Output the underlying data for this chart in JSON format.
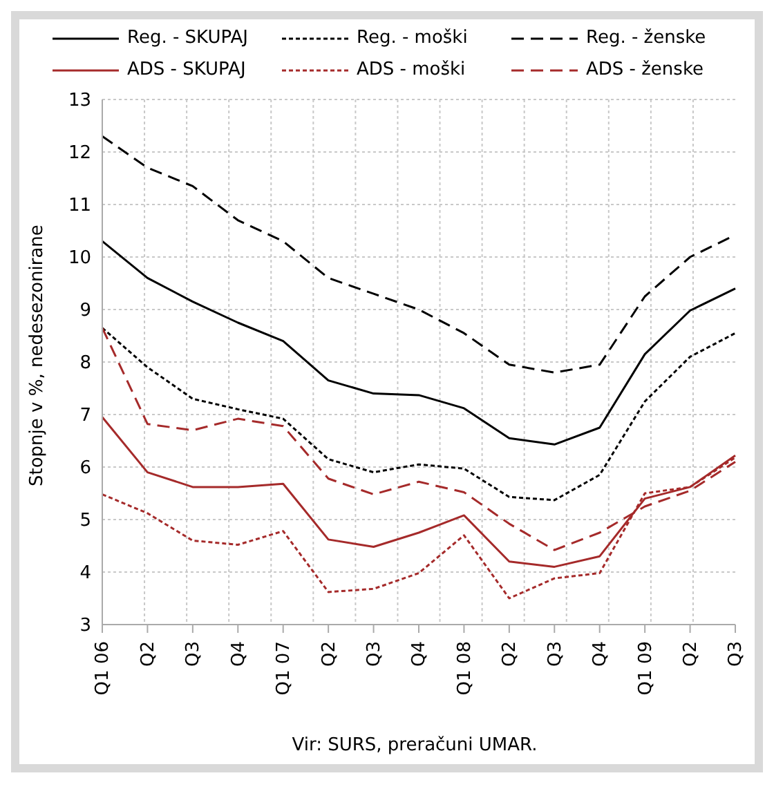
{
  "chart_data": {
    "type": "line",
    "ylabel": "Stopnje v %, nedesezonirane",
    "annotations": [
      "Vir: SURS, preračuni UMAR."
    ],
    "categories": [
      "Q1 06",
      "Q2",
      "Q3",
      "Q4",
      "Q1 07",
      "Q2",
      "Q3",
      "Q4",
      "Q1 08",
      "Q2",
      "Q3",
      "Q4",
      "Q1 09",
      "Q2",
      "Q3"
    ],
    "ylim": [
      3,
      13
    ],
    "yticks": [
      3,
      4,
      5,
      6,
      7,
      8,
      9,
      10,
      11,
      12,
      13
    ],
    "grid": true,
    "legend": "top",
    "marker": "none",
    "series": [
      {
        "name": "Reg. - SKUPAJ",
        "color": "#000000",
        "line_style": "solid",
        "values": [
          10.3,
          9.6,
          9.15,
          8.75,
          8.4,
          7.65,
          7.4,
          7.37,
          7.12,
          6.55,
          6.43,
          6.75,
          8.15,
          8.98,
          9.4
        ]
      },
      {
        "name": "Reg. - moški",
        "color": "#000000",
        "line_style": "dotted",
        "values": [
          8.65,
          7.9,
          7.3,
          7.1,
          6.92,
          6.15,
          5.9,
          6.05,
          5.97,
          5.43,
          5.37,
          5.85,
          7.25,
          8.1,
          8.55
        ]
      },
      {
        "name": "Reg. - ženske",
        "color": "#000000",
        "line_style": "dashed",
        "values": [
          12.3,
          11.7,
          11.35,
          10.7,
          10.3,
          9.6,
          9.3,
          9.0,
          8.55,
          7.95,
          7.8,
          7.95,
          9.25,
          10.0,
          10.42
        ]
      },
      {
        "name": "ADS - SKUPAJ",
        "color": "#a52a2a",
        "line_style": "solid",
        "values": [
          6.95,
          5.9,
          5.62,
          5.62,
          5.68,
          4.62,
          4.48,
          4.75,
          5.08,
          4.2,
          4.1,
          4.3,
          5.4,
          5.62,
          6.22
        ]
      },
      {
        "name": "ADS - moški",
        "color": "#a52a2a",
        "line_style": "dotted",
        "values": [
          5.48,
          5.12,
          4.6,
          4.52,
          4.78,
          3.62,
          3.68,
          3.98,
          4.7,
          3.5,
          3.88,
          3.98,
          5.5,
          5.62,
          6.18
        ]
      },
      {
        "name": "ADS - ženske",
        "color": "#a52a2a",
        "line_style": "dashed",
        "values": [
          8.65,
          6.82,
          6.7,
          6.92,
          6.78,
          5.78,
          5.48,
          5.72,
          5.52,
          4.92,
          4.42,
          4.75,
          5.25,
          5.55,
          6.1
        ]
      }
    ]
  }
}
